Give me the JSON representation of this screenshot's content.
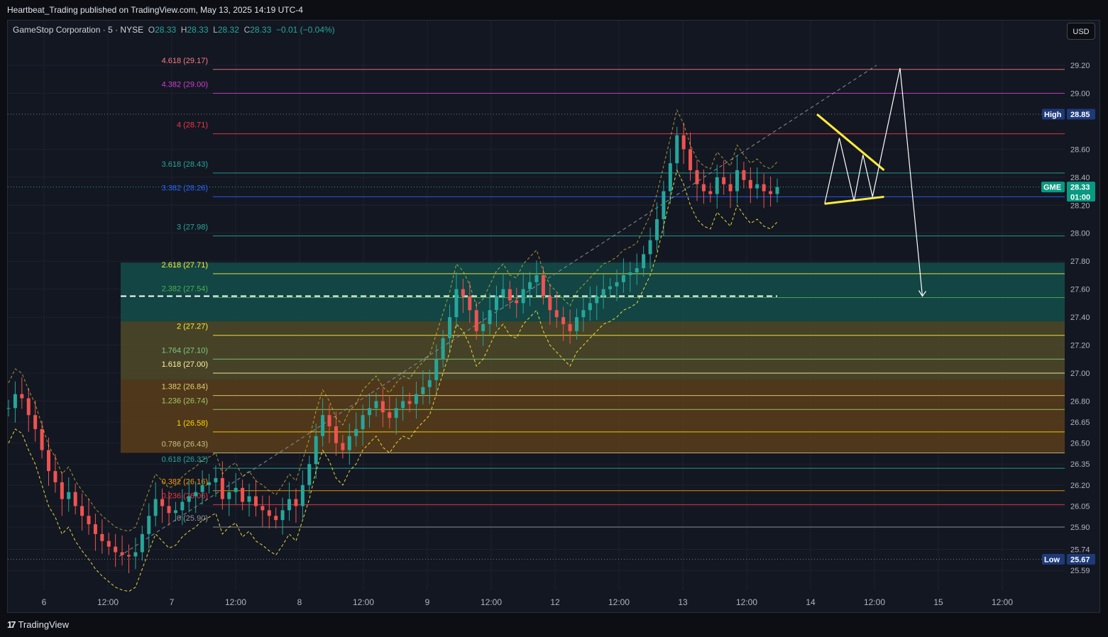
{
  "header": {
    "published_text": "Heartbeat_Trading published on TradingView.com, May 13, 2025 14:19 UTC-4"
  },
  "legend": {
    "symbol_text": "GameStop Corporation · 5 · NYSE",
    "o_label": "O",
    "o_value": "28.33",
    "h_label": "H",
    "h_value": "28.33",
    "l_label": "L",
    "l_value": "28.32",
    "c_label": "C",
    "c_value": "28.33",
    "change_text": "−0.01 (−0.04%)"
  },
  "currency_button": "USD",
  "footer": {
    "logo_text": "TradingView",
    "logo_mark": "17"
  },
  "colors": {
    "background": "#131722",
    "grid": "#1e222d",
    "up": "#26a69a",
    "down": "#ef5350",
    "pattern": "#ffeb3b",
    "projection": "#ffffff",
    "zone_teal": "#134e4a",
    "zone_yellow": "#4f4a28",
    "zone_orange": "#5a3d1a"
  },
  "chart_data": {
    "type": "candlestick",
    "symbol": "GME",
    "interval": "5",
    "exchange": "NYSE",
    "price_axis": {
      "ticks": [
        "29.20",
        "29.00",
        "28.60",
        "28.40",
        "28.20",
        "28.00",
        "27.80",
        "27.60",
        "27.40",
        "27.20",
        "27.00",
        "26.80",
        "26.65",
        "26.50",
        "26.35",
        "26.20",
        "26.05",
        "25.90",
        "25.74",
        "25.59"
      ],
      "range": [
        25.55,
        29.25
      ],
      "tick_values": [
        29.2,
        29.0,
        28.6,
        28.4,
        28.2,
        28.0,
        27.8,
        27.6,
        27.4,
        27.2,
        27.0,
        26.8,
        26.65,
        26.5,
        26.35,
        26.2,
        26.05,
        25.9,
        25.74,
        25.59
      ]
    },
    "time_axis": {
      "ticks": [
        "6",
        "12:00",
        "7",
        "12:00",
        "8",
        "12:00",
        "9",
        "12:00",
        "12",
        "12:00",
        "13",
        "12:00",
        "14",
        "12:00",
        "15",
        "12:00"
      ],
      "tick_index": [
        0,
        1,
        2,
        3,
        4,
        5,
        6,
        7,
        8,
        9,
        10,
        11,
        12,
        13,
        14,
        15
      ]
    },
    "price_tags": [
      {
        "label": "High",
        "value": "28.85",
        "price": 28.85
      },
      {
        "label": "GME",
        "value": "28.33",
        "time": "01:00",
        "price": 28.33
      },
      {
        "label": "Low",
        "value": "25.67",
        "price": 25.67
      }
    ],
    "fib_levels": [
      {
        "ratio": "4.618",
        "price": 29.17,
        "text": "4.618 (29.17)",
        "color": "#f77c80"
      },
      {
        "ratio": "4.382",
        "price": 29.0,
        "text": "4.382 (29.00)",
        "color": "#ce3fce"
      },
      {
        "ratio": "4",
        "price": 28.71,
        "text": "4 (28.71)",
        "color": "#f23645"
      },
      {
        "ratio": "3.618",
        "price": 28.43,
        "text": "3.618 (28.43)",
        "color": "#26a69a"
      },
      {
        "ratio": "3.382",
        "price": 28.26,
        "text": "3.382 (28.26)",
        "color": "#2962ff"
      },
      {
        "ratio": "3",
        "price": 27.98,
        "text": "3 (27.98)",
        "color": "#26a69a"
      },
      {
        "ratio": "2.618",
        "price": 27.71,
        "text": "2.618 (27.71)",
        "color": "#ffeb3b"
      },
      {
        "ratio": "2.382",
        "price": 27.54,
        "text": "2.382 (27.54)",
        "color": "#4caf50"
      },
      {
        "ratio": "2",
        "price": 27.27,
        "text": "2 (27.27)",
        "color": "#ffeb3b"
      },
      {
        "ratio": "1.764",
        "price": 27.1,
        "text": "1.764 (27.10)",
        "color": "#81c784"
      },
      {
        "ratio": "1.618",
        "price": 27.0,
        "text": "1.618 (27.00)",
        "color": "#fff59d"
      },
      {
        "ratio": "1.382",
        "price": 26.84,
        "text": "1.382 (26.84)",
        "color": "#e0d070"
      },
      {
        "ratio": "1.236",
        "price": 26.74,
        "text": "1.236 (26.74)",
        "color": "#9ccc65"
      },
      {
        "ratio": "1",
        "price": 26.58,
        "text": "1 (26.58)",
        "color": "#ffd600"
      },
      {
        "ratio": "0.786",
        "price": 26.43,
        "text": "0.786 (26.43)",
        "color": "#c8c080"
      },
      {
        "ratio": "0.618",
        "price": 26.32,
        "text": "0.618 (26.32)",
        "color": "#26a69a"
      },
      {
        "ratio": "0.382",
        "price": 26.16,
        "text": "0.382 (26.16)",
        "color": "#ff9800"
      },
      {
        "ratio": "0.236",
        "price": 26.06,
        "text": "0.236 (26.06)",
        "color": "#f23645"
      },
      {
        "ratio": "0",
        "price": 25.9,
        "text": "0 (25.90)",
        "color": "#9598a1"
      }
    ],
    "zones": [
      {
        "name": "teal",
        "from": 27.37,
        "to": 27.79
      },
      {
        "name": "yellow",
        "from": 26.95,
        "to": 27.37
      },
      {
        "name": "orange",
        "from": 26.43,
        "to": 26.95
      }
    ],
    "trendline_triangle": {
      "upper": [
        [
          13.1,
          28.85
        ],
        [
          14.15,
          28.45
        ]
      ],
      "lower": [
        [
          13.22,
          28.21
        ],
        [
          14.15,
          28.26
        ]
      ]
    },
    "projection_path": [
      [
        13.22,
        28.21
      ],
      [
        13.45,
        28.68
      ],
      [
        13.68,
        28.23
      ],
      [
        13.82,
        28.56
      ],
      [
        13.97,
        28.26
      ],
      [
        14.4,
        29.18
      ],
      [
        14.75,
        27.55
      ]
    ],
    "dashed_reference_price": 27.55,
    "series": [
      {
        "name": "GME",
        "closes": [
          26.75,
          26.85,
          26.82,
          26.7,
          26.6,
          26.45,
          26.3,
          26.22,
          26.1,
          26.15,
          26.05,
          25.98,
          25.92,
          25.85,
          25.8,
          25.76,
          25.72,
          25.7,
          25.69,
          25.72,
          25.85,
          25.98,
          26.1,
          26.05,
          26.0,
          26.02,
          26.08,
          26.12,
          26.15,
          26.2,
          26.22,
          26.25,
          26.1,
          26.15,
          26.18,
          26.08,
          26.12,
          26.05,
          26.02,
          25.98,
          25.95,
          26.02,
          26.1,
          26.05,
          26.2,
          26.35,
          26.55,
          26.7,
          26.62,
          26.5,
          26.45,
          26.55,
          26.6,
          26.7,
          26.75,
          26.8,
          26.72,
          26.68,
          26.75,
          26.8,
          26.78,
          26.85,
          26.9,
          26.95,
          27.1,
          27.25,
          27.4,
          27.6,
          27.55,
          27.45,
          27.3,
          27.35,
          27.45,
          27.55,
          27.6,
          27.52,
          27.5,
          27.6,
          27.65,
          27.7,
          27.55,
          27.45,
          27.4,
          27.35,
          27.3,
          27.4,
          27.45,
          27.5,
          27.55,
          27.6,
          27.62,
          27.65,
          27.7,
          27.72,
          27.75,
          27.85,
          27.95,
          28.1,
          28.3,
          28.5,
          28.7,
          28.6,
          28.45,
          28.35,
          28.3,
          28.28,
          28.4,
          28.35,
          28.3,
          28.45,
          28.38,
          28.32,
          28.35,
          28.3,
          28.28,
          28.33
        ],
        "ohlc_note": "closes estimated from the rendered candles"
      }
    ]
  }
}
